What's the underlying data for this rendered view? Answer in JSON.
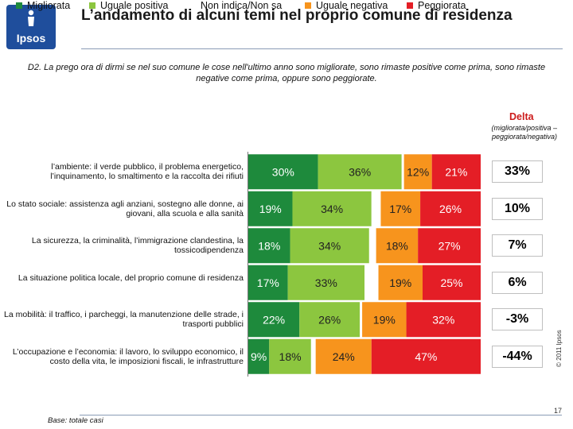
{
  "logo": {
    "text": "Ipsos"
  },
  "title": "L’andamento di alcuni temi nel proprio comune di residenza",
  "question": "D2. La prego ora di dirmi se nel suo comune le cose nell'ultimo anno sono migliorate, sono rimaste positive come prima, sono rimaste negative come prima, oppure sono peggiorate.",
  "legend": [
    {
      "label": "Migliorata",
      "color": "#1e8a3c"
    },
    {
      "label": "Uguale positiva",
      "color": "#8cc63f"
    },
    {
      "label": "Non indica/Non sa",
      "color": "#ffffff"
    },
    {
      "label": "Uguale negativa",
      "color": "#f7941d"
    },
    {
      "label": "Peggiorata",
      "color": "#e41e26"
    }
  ],
  "delta_header": {
    "title": "Delta",
    "subtitle": "(migliorata/positiva – peggiorata/negativa)"
  },
  "chart_data": {
    "type": "bar",
    "stacked": true,
    "orientation": "horizontal",
    "unit": "%",
    "categories": [
      "l’ambiente: il verde pubblico, il problema energetico, l’inquinamento, lo smaltimento e la raccolta dei rifiuti",
      "Lo stato sociale: assistenza agli anziani, sostegno alle donne, ai giovani, alla scuola e alla sanità",
      "La sicurezza, la criminalità, l’immigrazione clandestina, la tossicodipendenza",
      "La situazione politica locale, del proprio comune di residenza",
      "La mobilità: il traffico, i parcheggi, la manutenzione delle strade, i trasporti pubblici",
      "L’occupazione e l’economia: il lavoro, lo sviluppo economico, il costo della vita, le imposizioni fiscali, le infrastrutture"
    ],
    "series": [
      {
        "name": "Migliorata",
        "values": [
          30,
          19,
          18,
          17,
          22,
          9
        ],
        "labels": [
          "30%",
          "19%",
          "18%",
          "17%",
          "22%",
          "9%"
        ]
      },
      {
        "name": "Uguale positiva",
        "values": [
          36,
          34,
          34,
          33,
          26,
          18
        ],
        "labels": [
          "36%",
          "34%",
          "34%",
          "33%",
          "26%",
          "18%"
        ]
      },
      {
        "name": "Non indica/Non sa",
        "values": [
          1,
          4,
          3,
          6,
          1,
          2
        ],
        "labels": [
          "",
          "",
          "",
          "",
          "",
          ""
        ]
      },
      {
        "name": "Uguale negativa",
        "values": [
          12,
          17,
          18,
          19,
          19,
          24
        ],
        "labels": [
          "12%",
          "17%",
          "18%",
          "19%",
          "19%",
          "24%"
        ]
      },
      {
        "name": "Peggiorata",
        "values": [
          21,
          26,
          27,
          25,
          32,
          47
        ],
        "labels": [
          "21%",
          "26%",
          "27%",
          "25%",
          "32%",
          "47%"
        ]
      }
    ],
    "xlim": [
      0,
      100
    ],
    "delta": [
      "33%",
      "10%",
      "7%",
      "6%",
      "-3%",
      "-44%"
    ]
  },
  "copyright": "© 2011 Ipsos",
  "base": "Base: totale casi",
  "page_number": "17"
}
